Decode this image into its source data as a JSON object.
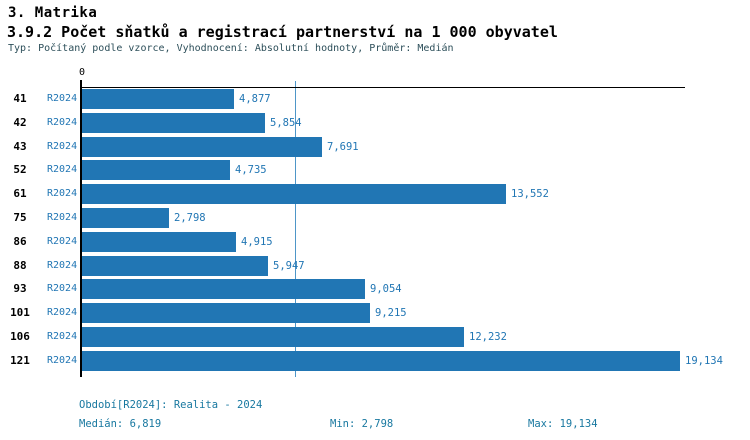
{
  "header": {
    "section_title": "3. Matrika",
    "indicator_title": "3.9.2 Počet sňatků a registrací partnerství na 1 000 obyvatel",
    "meta": "Typ: Počítaný podle vzorce, Vyhodnocení: Absolutní hodnoty, Průměr: Medián"
  },
  "chart_data": {
    "type": "bar",
    "orientation": "horizontal",
    "title": "3.9.2 Počet sňatků a registrací partnerství na 1 000 obyvatel",
    "xlabel": "",
    "ylabel": "",
    "zero_tick_label": "0",
    "xlim": [
      0,
      19290
    ],
    "grid": false,
    "legend_position": "none",
    "categories": [
      "41",
      "42",
      "43",
      "52",
      "61",
      "75",
      "86",
      "88",
      "93",
      "101",
      "106",
      "121"
    ],
    "series": [
      {
        "name": "R2024",
        "values": [
          4877,
          5854,
          7691,
          4735,
          13552,
          2798,
          4915,
          5947,
          9054,
          9215,
          12232,
          19134
        ],
        "value_labels": [
          "4,877",
          "5,854",
          "7,691",
          "4,735",
          "13,552",
          "2,798",
          "4,915",
          "5,947",
          "9,054",
          "9,215",
          "12,232",
          "19,134"
        ]
      }
    ],
    "median_value": 6819,
    "min_value": 2798,
    "max_value": 19134,
    "colors": {
      "bar": "#2176b4",
      "value_label": "#2176b4",
      "median_line": "#4e96c8",
      "axis": "#000000",
      "footer_text": "#1878a0",
      "meta_text": "#2d4f5a"
    }
  },
  "footer": {
    "period": "Období[R2024]: Realita - 2024",
    "median": "Medián: 6,819",
    "min": "Min: 2,798",
    "max": "Max: 19,134"
  }
}
